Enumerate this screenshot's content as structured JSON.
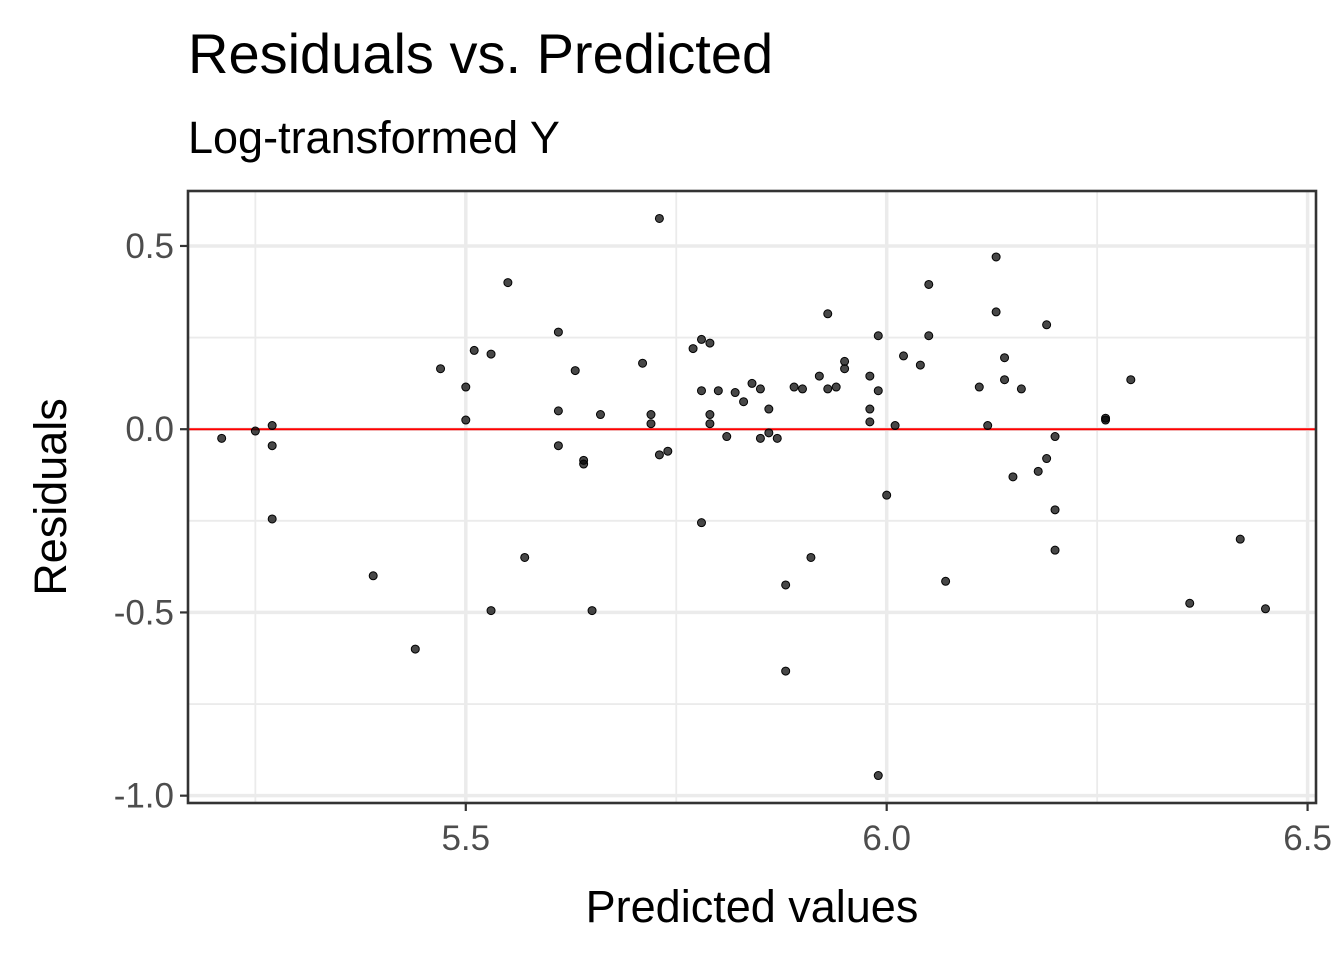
{
  "chart_data": {
    "type": "scatter",
    "title": "Residuals vs. Predicted",
    "subtitle": "Log-transformed Y",
    "xlabel": "Predicted values",
    "ylabel": "Residuals",
    "xlim": [
      5.17,
      6.51
    ],
    "ylim": [
      -1.02,
      0.65
    ],
    "x_ticks": [
      5.5,
      6.0,
      6.5
    ],
    "x_tick_labels": [
      "5.5",
      "6.0",
      "6.5"
    ],
    "y_ticks": [
      -1.0,
      -0.5,
      0.0,
      0.5
    ],
    "y_tick_labels": [
      "-1.0",
      "-0.5",
      "0.0",
      "0.5"
    ],
    "x_minor_ticks": [
      5.25,
      5.75,
      6.25
    ],
    "y_minor_ticks": [
      -0.75,
      -0.25,
      0.25
    ],
    "grid": true,
    "reference_line": {
      "y": 0.0,
      "color": "#ff0000"
    },
    "point_color": "#000000",
    "points": [
      {
        "x": 5.21,
        "y": -0.025
      },
      {
        "x": 5.25,
        "y": -0.005
      },
      {
        "x": 5.27,
        "y": 0.01
      },
      {
        "x": 5.27,
        "y": -0.045
      },
      {
        "x": 5.27,
        "y": -0.245
      },
      {
        "x": 5.39,
        "y": -0.4
      },
      {
        "x": 5.44,
        "y": -0.6
      },
      {
        "x": 5.47,
        "y": 0.165
      },
      {
        "x": 5.5,
        "y": 0.115
      },
      {
        "x": 5.5,
        "y": 0.025
      },
      {
        "x": 5.51,
        "y": 0.215
      },
      {
        "x": 5.53,
        "y": -0.495
      },
      {
        "x": 5.53,
        "y": 0.205
      },
      {
        "x": 5.55,
        "y": 0.4
      },
      {
        "x": 5.57,
        "y": -0.35
      },
      {
        "x": 5.61,
        "y": -0.045
      },
      {
        "x": 5.61,
        "y": 0.265
      },
      {
        "x": 5.61,
        "y": 0.05
      },
      {
        "x": 5.63,
        "y": 0.16
      },
      {
        "x": 5.64,
        "y": -0.085
      },
      {
        "x": 5.64,
        "y": -0.095
      },
      {
        "x": 5.65,
        "y": -0.495
      },
      {
        "x": 5.66,
        "y": 0.04
      },
      {
        "x": 5.71,
        "y": 0.18
      },
      {
        "x": 5.72,
        "y": 0.04
      },
      {
        "x": 5.72,
        "y": 0.015
      },
      {
        "x": 5.73,
        "y": 0.575
      },
      {
        "x": 5.73,
        "y": -0.07
      },
      {
        "x": 5.74,
        "y": -0.06
      },
      {
        "x": 5.77,
        "y": 0.22
      },
      {
        "x": 5.78,
        "y": 0.105
      },
      {
        "x": 5.78,
        "y": 0.245
      },
      {
        "x": 5.78,
        "y": -0.255
      },
      {
        "x": 5.79,
        "y": 0.04
      },
      {
        "x": 5.79,
        "y": 0.015
      },
      {
        "x": 5.79,
        "y": 0.235
      },
      {
        "x": 5.8,
        "y": 0.105
      },
      {
        "x": 5.81,
        "y": -0.02
      },
      {
        "x": 5.82,
        "y": 0.1
      },
      {
        "x": 5.83,
        "y": 0.075
      },
      {
        "x": 5.84,
        "y": 0.125
      },
      {
        "x": 5.85,
        "y": 0.11
      },
      {
        "x": 5.85,
        "y": -0.025
      },
      {
        "x": 5.86,
        "y": -0.01
      },
      {
        "x": 5.86,
        "y": 0.055
      },
      {
        "x": 5.87,
        "y": -0.025
      },
      {
        "x": 5.88,
        "y": -0.66
      },
      {
        "x": 5.88,
        "y": -0.425
      },
      {
        "x": 5.89,
        "y": 0.115
      },
      {
        "x": 5.9,
        "y": 0.11
      },
      {
        "x": 5.91,
        "y": -0.35
      },
      {
        "x": 5.92,
        "y": 0.145
      },
      {
        "x": 5.93,
        "y": 0.315
      },
      {
        "x": 5.93,
        "y": 0.11
      },
      {
        "x": 5.94,
        "y": 0.115
      },
      {
        "x": 5.95,
        "y": 0.185
      },
      {
        "x": 5.95,
        "y": 0.165
      },
      {
        "x": 5.98,
        "y": 0.02
      },
      {
        "x": 5.98,
        "y": 0.055
      },
      {
        "x": 5.98,
        "y": 0.145
      },
      {
        "x": 5.99,
        "y": 0.255
      },
      {
        "x": 5.99,
        "y": 0.105
      },
      {
        "x": 5.99,
        "y": -0.945
      },
      {
        "x": 6.0,
        "y": -0.18
      },
      {
        "x": 6.01,
        "y": 0.01
      },
      {
        "x": 6.02,
        "y": 0.2
      },
      {
        "x": 6.04,
        "y": 0.175
      },
      {
        "x": 6.05,
        "y": 0.395
      },
      {
        "x": 6.05,
        "y": 0.255
      },
      {
        "x": 6.07,
        "y": -0.415
      },
      {
        "x": 6.11,
        "y": 0.115
      },
      {
        "x": 6.12,
        "y": 0.01
      },
      {
        "x": 6.13,
        "y": 0.47
      },
      {
        "x": 6.13,
        "y": 0.32
      },
      {
        "x": 6.14,
        "y": 0.195
      },
      {
        "x": 6.14,
        "y": 0.135
      },
      {
        "x": 6.15,
        "y": -0.13
      },
      {
        "x": 6.16,
        "y": 0.11
      },
      {
        "x": 6.18,
        "y": -0.115
      },
      {
        "x": 6.19,
        "y": 0.285
      },
      {
        "x": 6.19,
        "y": -0.08
      },
      {
        "x": 6.2,
        "y": -0.02
      },
      {
        "x": 6.2,
        "y": -0.22
      },
      {
        "x": 6.2,
        "y": -0.33
      },
      {
        "x": 6.26,
        "y": 0.025
      },
      {
        "x": 6.26,
        "y": 0.03
      },
      {
        "x": 6.29,
        "y": 0.135
      },
      {
        "x": 6.36,
        "y": -0.475
      },
      {
        "x": 6.42,
        "y": -0.3
      },
      {
        "x": 6.45,
        "y": -0.49
      }
    ]
  }
}
